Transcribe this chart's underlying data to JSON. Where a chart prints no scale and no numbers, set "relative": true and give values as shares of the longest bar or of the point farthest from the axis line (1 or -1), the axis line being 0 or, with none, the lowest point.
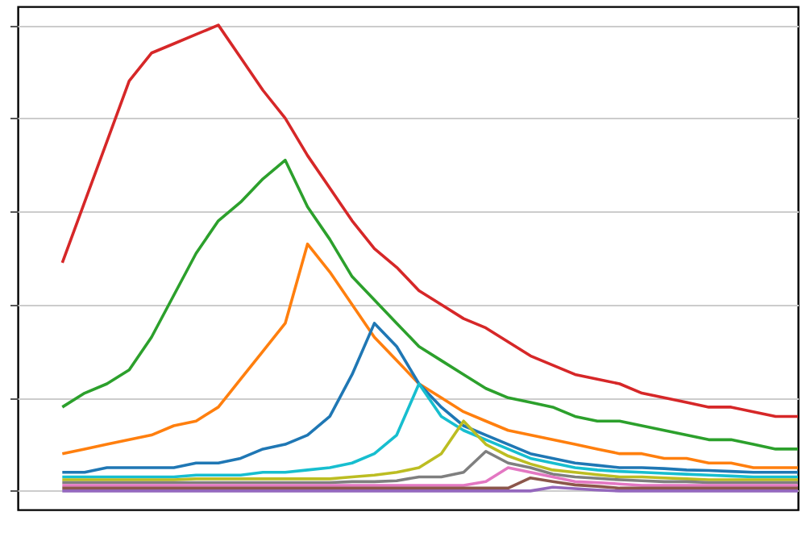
{
  "chart_data": {
    "type": "line",
    "relative": true,
    "grid": "y",
    "legend": false,
    "marker": "none",
    "line_style": "solid",
    "categories": [
      null,
      null,
      null,
      null,
      null,
      null,
      null,
      null,
      null,
      null,
      null,
      null,
      null,
      null,
      null,
      null,
      null,
      null,
      null,
      null,
      null,
      null,
      null,
      null,
      null,
      null,
      null,
      null,
      null,
      null,
      null,
      null,
      null,
      null
    ],
    "series": [
      {
        "color": "#d62728",
        "values": [
          0.49,
          0.62,
          0.75,
          0.88,
          0.94,
          0.96,
          0.98,
          1.0,
          0.93,
          0.86,
          0.8,
          0.72,
          0.65,
          0.58,
          0.52,
          0.48,
          0.43,
          0.4,
          0.37,
          0.35,
          0.32,
          0.29,
          0.27,
          0.25,
          0.24,
          0.23,
          0.21,
          0.2,
          0.19,
          0.18,
          0.18,
          0.17,
          0.16,
          0.16
        ]
      },
      {
        "color": "#2ca02c",
        "values": [
          0.18,
          0.21,
          0.23,
          0.26,
          0.33,
          0.42,
          0.51,
          0.58,
          0.62,
          0.67,
          0.71,
          0.61,
          0.54,
          0.46,
          0.41,
          0.36,
          0.31,
          0.28,
          0.25,
          0.22,
          0.2,
          0.19,
          0.18,
          0.16,
          0.15,
          0.15,
          0.14,
          0.13,
          0.12,
          0.11,
          0.11,
          0.1,
          0.09,
          0.09
        ]
      },
      {
        "color": "#ff7f0e",
        "values": [
          0.08,
          0.09,
          0.1,
          0.11,
          0.12,
          0.14,
          0.15,
          0.18,
          0.24,
          0.3,
          0.36,
          0.53,
          0.47,
          0.4,
          0.33,
          0.28,
          0.23,
          0.2,
          0.17,
          0.15,
          0.13,
          0.12,
          0.11,
          0.1,
          0.09,
          0.08,
          0.08,
          0.07,
          0.07,
          0.06,
          0.06,
          0.05,
          0.05,
          0.05
        ]
      },
      {
        "color": "#1f77b4",
        "values": [
          0.04,
          0.04,
          0.05,
          0.05,
          0.05,
          0.05,
          0.06,
          0.06,
          0.07,
          0.09,
          0.1,
          0.12,
          0.16,
          0.25,
          0.36,
          0.31,
          0.23,
          0.18,
          0.14,
          0.12,
          0.1,
          0.08,
          0.07,
          0.06,
          0.055,
          0.05,
          0.05,
          0.048,
          0.045,
          0.044,
          0.042,
          0.04,
          0.04,
          0.04
        ]
      },
      {
        "color": "#17becf",
        "values": [
          0.03,
          0.03,
          0.03,
          0.03,
          0.03,
          0.03,
          0.034,
          0.034,
          0.034,
          0.04,
          0.04,
          0.045,
          0.05,
          0.06,
          0.08,
          0.12,
          0.23,
          0.16,
          0.13,
          0.11,
          0.09,
          0.07,
          0.06,
          0.05,
          0.045,
          0.042,
          0.04,
          0.038,
          0.036,
          0.034,
          0.032,
          0.03,
          0.03,
          0.03
        ]
      },
      {
        "color": "#bcbd22",
        "values": [
          0.024,
          0.024,
          0.024,
          0.024,
          0.024,
          0.024,
          0.026,
          0.026,
          0.026,
          0.026,
          0.026,
          0.026,
          0.026,
          0.03,
          0.034,
          0.04,
          0.05,
          0.08,
          0.15,
          0.1,
          0.075,
          0.058,
          0.045,
          0.04,
          0.035,
          0.03,
          0.03,
          0.028,
          0.026,
          0.024,
          0.024,
          0.024,
          0.024,
          0.024
        ]
      },
      {
        "color": "#7f7f7f",
        "values": [
          0.018,
          0.018,
          0.018,
          0.018,
          0.018,
          0.018,
          0.018,
          0.018,
          0.018,
          0.018,
          0.018,
          0.018,
          0.018,
          0.02,
          0.02,
          0.022,
          0.03,
          0.03,
          0.04,
          0.085,
          0.06,
          0.05,
          0.036,
          0.03,
          0.027,
          0.024,
          0.022,
          0.02,
          0.02,
          0.018,
          0.018,
          0.018,
          0.018,
          0.018
        ]
      },
      {
        "color": "#e377c2",
        "values": [
          0.012,
          0.012,
          0.012,
          0.012,
          0.012,
          0.012,
          0.012,
          0.012,
          0.012,
          0.012,
          0.012,
          0.012,
          0.012,
          0.012,
          0.012,
          0.012,
          0.012,
          0.012,
          0.012,
          0.02,
          0.05,
          0.04,
          0.03,
          0.02,
          0.018,
          0.015,
          0.012,
          0.012,
          0.012,
          0.012,
          0.012,
          0.012,
          0.012,
          0.012
        ]
      },
      {
        "color": "#8c564b",
        "values": [
          0.006,
          0.006,
          0.006,
          0.006,
          0.006,
          0.006,
          0.006,
          0.006,
          0.006,
          0.006,
          0.006,
          0.006,
          0.006,
          0.006,
          0.006,
          0.006,
          0.006,
          0.006,
          0.006,
          0.006,
          0.006,
          0.028,
          0.02,
          0.013,
          0.01,
          0.006,
          0.006,
          0.006,
          0.006,
          0.006,
          0.006,
          0.006,
          0.006,
          0.006
        ]
      },
      {
        "color": "#9467bd",
        "values": [
          0.0,
          0.0,
          0.0,
          0.0,
          0.0,
          0.0,
          0.0,
          0.0,
          0.0,
          0.0,
          0.0,
          0.0,
          0.0,
          0.0,
          0.0,
          0.0,
          0.0,
          0.0,
          0.0,
          0.0,
          0.0,
          0.0,
          0.008,
          0.005,
          0.002,
          0.0,
          0.0,
          0.0,
          0.0,
          0.0,
          0.0,
          0.0,
          0.0,
          0.0
        ]
      }
    ]
  }
}
